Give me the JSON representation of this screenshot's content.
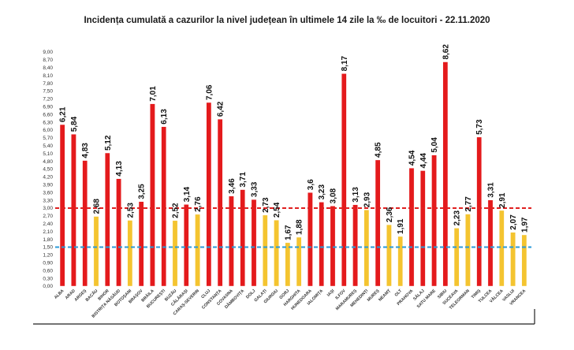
{
  "chart_data": {
    "type": "bar",
    "title": "Incidența cumulată a cazurilor la nivel județean în ultimele 14 zile la ‰ de locuitori - 22.11.2020",
    "xlabel": "",
    "ylabel": "",
    "ylim": [
      0,
      9.0
    ],
    "ytick_step": 0.3,
    "grid": false,
    "categories": [
      "ALBA",
      "ARAD",
      "ARGEȘ",
      "BACĂU",
      "BIHOR",
      "BISTRIȚA NĂSĂUD",
      "BOTOȘANI",
      "BRAȘOV",
      "BRĂILA",
      "BUCUREȘTI",
      "BUZĂU",
      "CĂLĂRAȘI",
      "CARAȘ-SEVERIN",
      "CLUJ",
      "CONSTANȚA",
      "COVASNA",
      "DÂMBOVIȚA",
      "DOLJ",
      "GALAȚI",
      "GIURGIU",
      "GORJ",
      "HARGHITA",
      "HUNEDOARA",
      "IALOMIȚA",
      "IAȘI",
      "ILFOV",
      "MARAMUREȘ",
      "MEHEDINȚI",
      "MUREȘ",
      "NEAMȚ",
      "OLT",
      "PRAHOVA",
      "SĂLAJ",
      "SATU MARE",
      "SIBIU",
      "SUCEAVA",
      "TELEORMAN",
      "TIMIȘ",
      "TULCEA",
      "VÂLCEA",
      "VASLUI",
      "VRANCEA"
    ],
    "values": [
      6.21,
      5.84,
      4.83,
      2.68,
      5.12,
      4.13,
      2.53,
      3.25,
      7.01,
      6.13,
      2.52,
      3.14,
      2.76,
      7.06,
      6.42,
      3.46,
      3.71,
      3.33,
      2.73,
      2.54,
      1.67,
      1.88,
      3.6,
      3.23,
      3.08,
      8.17,
      3.13,
      2.93,
      4.85,
      2.36,
      1.91,
      4.54,
      4.44,
      5.04,
      8.62,
      2.23,
      2.77,
      5.73,
      3.31,
      2.91,
      2.07,
      1.97
    ],
    "value_labels": [
      "6,21",
      "5,84",
      "4,83",
      "2,68",
      "5,12",
      "4,13",
      "2,53",
      "3,25",
      "7,01",
      "6,13",
      "2,52",
      "3,14",
      "2,76",
      "7,06",
      "6,42",
      "3,46",
      "3,71",
      "3,33",
      "2,73",
      "2,54",
      "1,67",
      "1,88",
      "3,6",
      "3,23",
      "3,08",
      "8,17",
      "3,13",
      "2,93",
      "4,85",
      "2,36",
      "1,91",
      "4,54",
      "4,44",
      "5,04",
      "8,62",
      "2,23",
      "2,77",
      "5,73",
      "3,31",
      "2,91",
      "2,07",
      "1,97"
    ],
    "thresholds": [
      {
        "value": 3.0,
        "color": "#e02020",
        "style": "dashed"
      },
      {
        "value": 1.5,
        "color": "#2a9ad8",
        "style": "dashed"
      }
    ],
    "colors": {
      "above_3": "#e41a1c",
      "between_1_5_and_3": "#f4c430",
      "bar_outline": "#ffffff"
    }
  }
}
